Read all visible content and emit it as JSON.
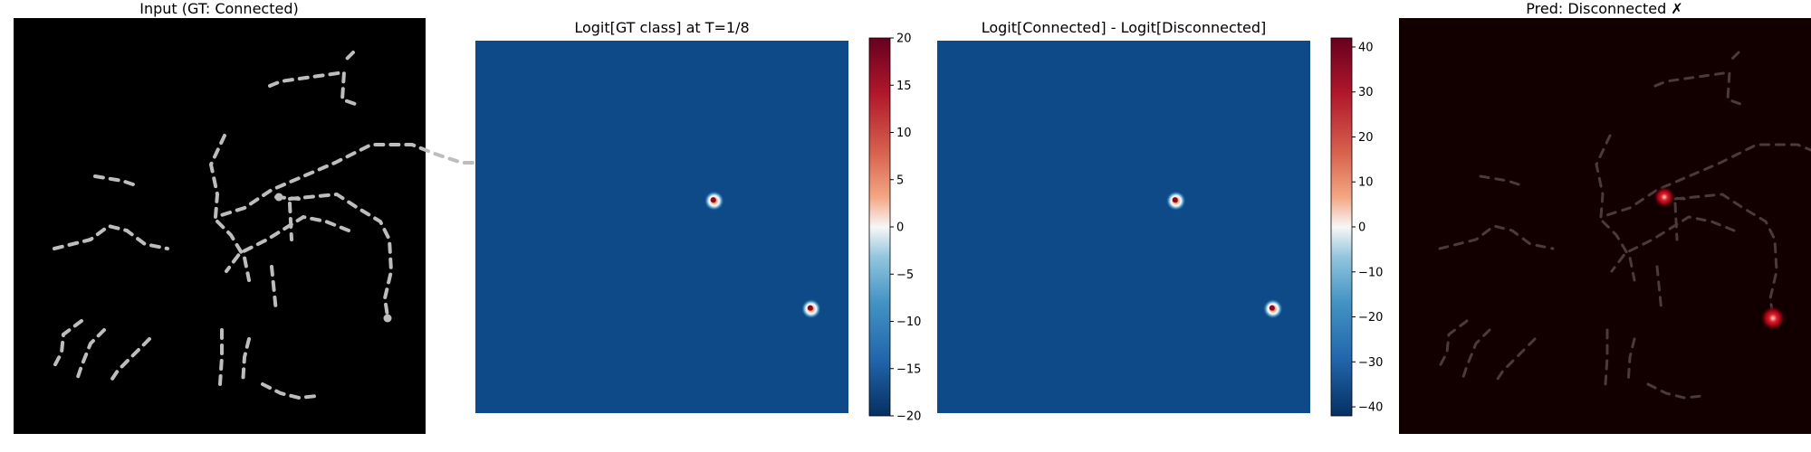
{
  "figure": {
    "panels": [
      {
        "title": "Input (GT: Connected)"
      },
      {
        "title": "Logit[GT class] at T=1/8"
      },
      {
        "title": "Logit[Connected] - Logit[Disconnected]"
      },
      {
        "title": "Pred: Disconnected ✗"
      }
    ]
  },
  "colors": {
    "input_background": "#000000",
    "input_dashes": "#bdbdbd",
    "heatmap_background": "#0d4a87",
    "overlay_background": "#120000",
    "overlay_dashes": "#4a3a38",
    "hotspot": "#ffffff",
    "colormap": "RdBu_r"
  },
  "chart_data": [
    {
      "type": "heatmap",
      "title": "Logit[GT class] at T=1/8",
      "colorbar": {
        "range": [
          -20,
          20
        ],
        "ticks": [
          -20,
          -15,
          -10,
          -5,
          0,
          5,
          10,
          15,
          20
        ],
        "tick_labels": [
          "−20",
          "−15",
          "−10",
          "−5",
          "0",
          "5",
          "10",
          "15",
          "20"
        ]
      },
      "background_value": -18,
      "hotspots": [
        {
          "x": 0.64,
          "y": 0.43,
          "peak": 20
        },
        {
          "x": 0.9,
          "y": 0.72,
          "peak": 20
        }
      ]
    },
    {
      "type": "heatmap",
      "title": "Logit[Connected] - Logit[Disconnected]",
      "colorbar": {
        "range": [
          -42,
          42
        ],
        "ticks": [
          -40,
          -30,
          -20,
          -10,
          0,
          10,
          20,
          30,
          40
        ],
        "tick_labels": [
          "−40",
          "−30",
          "−20",
          "−10",
          "0",
          "10",
          "20",
          "30",
          "40"
        ]
      },
      "background_value": -36,
      "hotspots": [
        {
          "x": 0.64,
          "y": 0.43,
          "peak": 40
        },
        {
          "x": 0.9,
          "y": 0.72,
          "peak": 40
        }
      ]
    }
  ]
}
